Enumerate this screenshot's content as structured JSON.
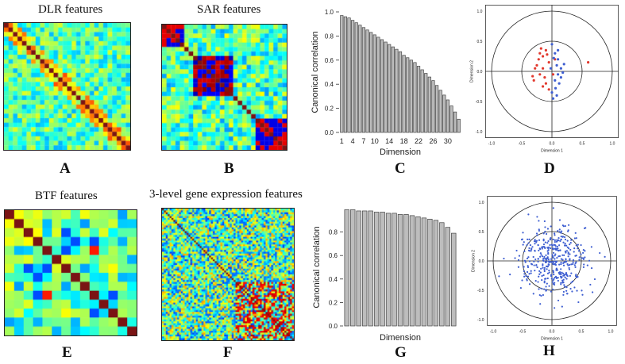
{
  "colors": {
    "bar_fill": "#bdbdbd",
    "bar_stroke": "#444444",
    "red_points": "#e2392e",
    "blue_points": "#3f5fd1",
    "heat_base": "#8ee07a",
    "heat_diag": "#7a1414"
  },
  "panels": {
    "A": {
      "title": "DLR features",
      "letter": "A"
    },
    "B": {
      "title": "SAR features",
      "letter": "B"
    },
    "C": {
      "letter": "C"
    },
    "D": {
      "letter": "D"
    },
    "E": {
      "title": "BTF features",
      "letter": "E"
    },
    "F": {
      "title": "3-level gene expression features",
      "letter": "F"
    },
    "G": {
      "letter": "G"
    },
    "H": {
      "letter": "H"
    }
  },
  "chart_data": [
    {
      "id": "C",
      "type": "bar",
      "ylabel": "Canonical correlation",
      "xlabel": "Dimension",
      "ylim": [
        0,
        1.0
      ],
      "yticks": [
        0.0,
        0.2,
        0.4,
        0.6,
        0.8,
        1.0
      ],
      "xticks": [
        1,
        4,
        7,
        10,
        14,
        18,
        22,
        26,
        30
      ],
      "categories": [
        1,
        2,
        3,
        4,
        5,
        6,
        7,
        8,
        9,
        10,
        11,
        12,
        13,
        14,
        15,
        16,
        17,
        18,
        19,
        20,
        21,
        22,
        23,
        24,
        25,
        26,
        27,
        28,
        29,
        30,
        31,
        32,
        33
      ],
      "values": [
        0.97,
        0.96,
        0.95,
        0.93,
        0.91,
        0.89,
        0.87,
        0.85,
        0.83,
        0.81,
        0.79,
        0.77,
        0.75,
        0.73,
        0.71,
        0.69,
        0.67,
        0.64,
        0.62,
        0.6,
        0.58,
        0.55,
        0.52,
        0.49,
        0.46,
        0.43,
        0.39,
        0.35,
        0.31,
        0.27,
        0.22,
        0.17,
        0.11
      ]
    },
    {
      "id": "D",
      "type": "scatter",
      "xlabel": "Dimension 1",
      "ylabel": "Dimension 2",
      "xlim": [
        -1.0,
        1.0
      ],
      "ylim": [
        -1.0,
        1.0
      ],
      "xticks": [
        -1.0,
        -0.5,
        0.0,
        0.5,
        1.0
      ],
      "yticks": [
        -1.0,
        -0.5,
        0.0,
        0.5,
        1.0
      ],
      "circles": [
        1.0,
        0.5
      ],
      "series": [
        {
          "color": "red",
          "points": [
            [
              -0.2,
              0.3
            ],
            [
              -0.15,
              0.25
            ],
            [
              -0.1,
              0.35
            ],
            [
              -0.25,
              0.1
            ],
            [
              -0.2,
              -0.05
            ],
            [
              -0.15,
              0.05
            ],
            [
              -0.3,
              -0.15
            ],
            [
              -0.1,
              -0.2
            ],
            [
              -0.05,
              0.15
            ],
            [
              -0.22,
              0.2
            ],
            [
              -0.12,
              -0.1
            ],
            [
              -0.18,
              0.38
            ],
            [
              0.05,
              0.2
            ],
            [
              -0.08,
              0.28
            ],
            [
              0.6,
              0.15
            ],
            [
              -0.28,
              0.05
            ],
            [
              -0.05,
              -0.3
            ],
            [
              -0.15,
              -0.25
            ],
            [
              0.02,
              -0.05
            ],
            [
              -0.32,
              -0.08
            ]
          ]
        },
        {
          "color": "blue",
          "points": [
            [
              0.0,
              0.45
            ],
            [
              0.05,
              0.3
            ],
            [
              0.1,
              0.2
            ],
            [
              0.08,
              0.1
            ],
            [
              0.15,
              0.05
            ],
            [
              0.1,
              -0.05
            ],
            [
              0.05,
              -0.15
            ],
            [
              0.12,
              -0.2
            ],
            [
              0.0,
              -0.35
            ],
            [
              0.08,
              -0.4
            ],
            [
              -0.02,
              0.05
            ],
            [
              0.2,
              0.12
            ],
            [
              0.15,
              -0.1
            ],
            [
              0.03,
              0.22
            ],
            [
              0.06,
              -0.28
            ],
            [
              0.18,
              -0.02
            ],
            [
              0.02,
              -0.45
            ],
            [
              0.1,
              0.35
            ]
          ]
        }
      ]
    },
    {
      "id": "G",
      "type": "bar",
      "ylabel": "Canonical correlation",
      "xlabel": "Dimension",
      "ylim": [
        0,
        1.0
      ],
      "yticks": [
        0.0,
        0.2,
        0.4,
        0.6,
        0.8
      ],
      "values": [
        0.99,
        0.99,
        0.98,
        0.98,
        0.98,
        0.97,
        0.97,
        0.96,
        0.96,
        0.95,
        0.95,
        0.94,
        0.93,
        0.92,
        0.91,
        0.9,
        0.88,
        0.84,
        0.79
      ]
    },
    {
      "id": "H",
      "type": "scatter",
      "xlabel": "Dimension 1",
      "ylabel": "Dimension 2",
      "xlim": [
        -1.0,
        1.0
      ],
      "ylim": [
        -1.0,
        1.0
      ],
      "xticks": [
        -1.0,
        -0.5,
        0.0,
        0.5,
        1.0
      ],
      "yticks": [
        -1.0,
        -0.5,
        0.0,
        0.5,
        1.0
      ],
      "circles": [
        1.0,
        0.5
      ],
      "series": [
        {
          "color": "blue",
          "point_count": 420,
          "spread": 0.3
        }
      ]
    }
  ],
  "heatmaps": {
    "A": {
      "n": 28
    },
    "B": {
      "n": 28
    },
    "E": {
      "n": 14
    },
    "F": {
      "n": 70
    }
  }
}
